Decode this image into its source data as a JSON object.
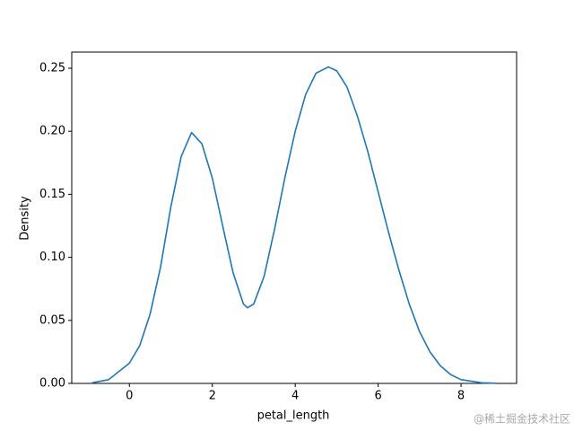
{
  "chart_data": {
    "type": "line",
    "xlabel": "petal_length",
    "ylabel": "Density",
    "x": [
      -0.9,
      -0.5,
      0,
      0.25,
      0.5,
      0.75,
      1.0,
      1.25,
      1.5,
      1.75,
      2.0,
      2.25,
      2.5,
      2.75,
      2.85,
      3.0,
      3.25,
      3.5,
      3.75,
      4.0,
      4.25,
      4.5,
      4.8,
      5.0,
      5.25,
      5.5,
      5.75,
      6.0,
      6.25,
      6.5,
      6.75,
      7.0,
      7.25,
      7.5,
      7.75,
      8.0,
      8.5,
      8.85
    ],
    "series": [
      {
        "color": "#1f77b4",
        "values": [
          0.0005,
          0.003,
          0.016,
          0.03,
          0.055,
          0.092,
          0.14,
          0.18,
          0.199,
          0.19,
          0.163,
          0.125,
          0.088,
          0.063,
          0.06,
          0.063,
          0.085,
          0.122,
          0.163,
          0.2,
          0.229,
          0.246,
          0.251,
          0.248,
          0.235,
          0.212,
          0.184,
          0.152,
          0.12,
          0.09,
          0.063,
          0.041,
          0.025,
          0.014,
          0.007,
          0.003,
          0.0005,
          0.0001
        ]
      }
    ],
    "xlim": [
      -1.39,
      9.34
    ],
    "ylim": [
      0,
      0.2628
    ],
    "xticks": [
      0,
      2,
      4,
      6,
      8
    ],
    "yticks": [
      {
        "value": 0,
        "label": "0.00"
      },
      {
        "value": 0.05,
        "label": "0.05"
      },
      {
        "value": 0.1,
        "label": "0.10"
      },
      {
        "value": 0.15,
        "label": "0.15"
      },
      {
        "value": 0.2,
        "label": "0.20"
      },
      {
        "value": 0.25,
        "label": "0.25"
      }
    ]
  },
  "watermark": "@稀土掘金技术社区"
}
